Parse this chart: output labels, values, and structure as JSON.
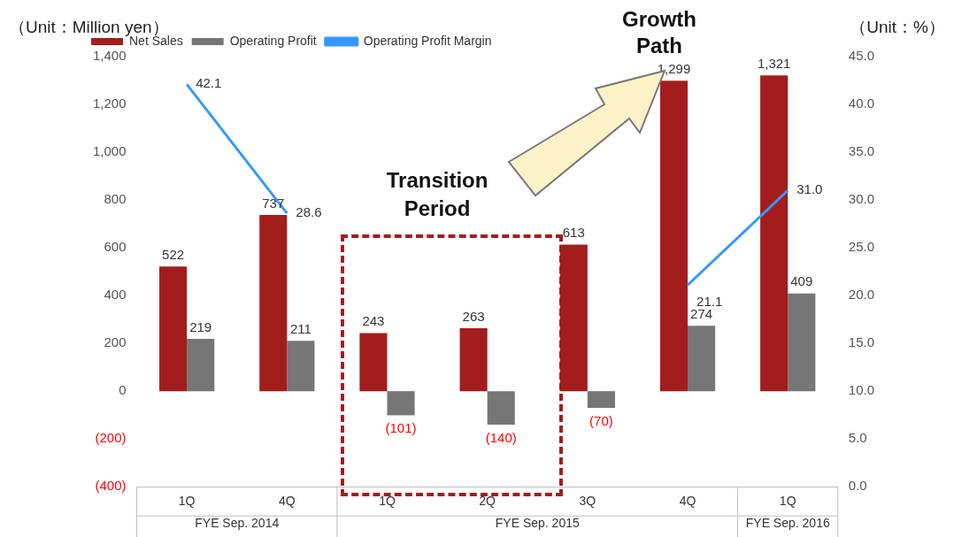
{
  "chart_data": {
    "type": "bar",
    "ylabel": "（Unit：Million yen）",
    "y2label": "（Unit：%）",
    "categories": [
      "1Q",
      "4Q",
      "1Q",
      "2Q",
      "3Q",
      "4Q",
      "1Q"
    ],
    "series": [
      {
        "name": "Net Sales",
        "color": "#a31d1d",
        "values": [
          522,
          737,
          243,
          263,
          613,
          1299,
          1321
        ],
        "value_labels": [
          "522",
          "737",
          "243",
          "263",
          "613",
          "1,299",
          "1,321"
        ]
      },
      {
        "name": "Operating Profit",
        "color": "#767676",
        "values": [
          219,
          211,
          -101,
          -140,
          -70,
          274,
          409
        ],
        "value_labels": [
          "219",
          "211",
          "(101)",
          "(140)",
          "(70)",
          "274",
          "409"
        ]
      },
      {
        "name": "Operating Profit Margin",
        "type": "line",
        "axis": "y2",
        "color": "#3399ff",
        "values": [
          42.1,
          28.6,
          null,
          null,
          null,
          21.1,
          31.0
        ],
        "value_labels": [
          "42.1",
          "28.6",
          null,
          null,
          null,
          "21.1",
          "31.0"
        ]
      }
    ],
    "ylim": [
      -400,
      1400
    ],
    "yticks": [
      {
        "value": -400,
        "label": "(400)"
      },
      {
        "value": -200,
        "label": "(200)"
      },
      0,
      {
        "value": 200,
        "label": "200"
      },
      {
        "value": 400,
        "label": "400"
      },
      {
        "value": 600,
        "label": "600"
      },
      {
        "value": 800,
        "label": "800"
      },
      {
        "value": 1000,
        "label": "1,000"
      },
      {
        "value": 1200,
        "label": "1,200"
      },
      {
        "value": 1400,
        "label": "1,400"
      }
    ],
    "y2lim": [
      0,
      45
    ],
    "y2ticks": [
      {
        "value": 0,
        "label": "0.0"
      },
      {
        "value": 5,
        "label": "5.0"
      },
      {
        "value": 10,
        "label": "10.0"
      },
      {
        "value": 15,
        "label": "15.0"
      },
      {
        "value": 20,
        "label": "20.0"
      },
      {
        "value": 25,
        "label": "25.0"
      },
      {
        "value": 30,
        "label": "30.0"
      },
      {
        "value": 35,
        "label": "35.0"
      },
      {
        "value": 40,
        "label": "40.0"
      },
      {
        "value": 45,
        "label": "45.0"
      }
    ],
    "annotations": [
      "FYE Sep. 2014",
      "FYE Sep. 2015",
      "FYE Sep. 2016",
      "Transition Period",
      "Growth Path"
    ],
    "legend": "top",
    "marker": "none",
    "line_style": "solid"
  }
}
